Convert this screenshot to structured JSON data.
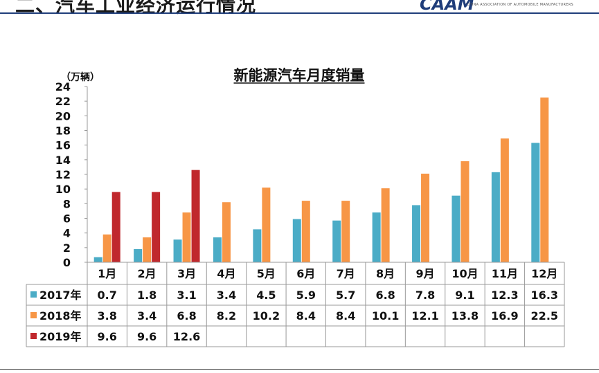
{
  "slide": {
    "heading": "二、汽车工业经济运行情况",
    "logo_mark": "CAAM",
    "logo_subtitle": "CHINA ASSOCIATION OF AUTOMOBILE MANUFACTURERS"
  },
  "chart_data": {
    "type": "bar",
    "title": "新能源汽车月度销量",
    "unit_label": "（万辆）",
    "ylim": [
      0,
      24
    ],
    "yticks": [
      0,
      2,
      4,
      6,
      8,
      10,
      12,
      14,
      16,
      18,
      20,
      22,
      24
    ],
    "grid": false,
    "legend": "table-left",
    "categories": [
      "1月",
      "2月",
      "3月",
      "4月",
      "5月",
      "6月",
      "7月",
      "8月",
      "9月",
      "10月",
      "11月",
      "12月"
    ],
    "series": [
      {
        "name": "2017年",
        "color": "#4bacc6",
        "values": [
          0.7,
          1.8,
          3.1,
          3.4,
          4.5,
          5.9,
          5.7,
          6.8,
          7.8,
          9.1,
          12.3,
          16.3
        ],
        "labels": [
          "0.7",
          "1.8",
          "3.1",
          "3.4",
          "4.5",
          "5.9",
          "5.7",
          "6.8",
          "7.8",
          "9.1",
          "12.3",
          "16.3"
        ]
      },
      {
        "name": "2018年",
        "color": "#f79646",
        "values": [
          3.8,
          3.4,
          6.8,
          8.2,
          10.2,
          8.4,
          8.4,
          10.1,
          12.1,
          13.8,
          16.9,
          22.5
        ],
        "labels": [
          "3.8",
          "3.4",
          "6.8",
          "8.2",
          "10.2",
          "8.4",
          "8.4",
          "10.1",
          "12.1",
          "13.8",
          "16.9",
          "22.5"
        ]
      },
      {
        "name": "2019年",
        "color": "#c0282d",
        "values": [
          9.6,
          9.6,
          12.6,
          null,
          null,
          null,
          null,
          null,
          null,
          null,
          null,
          null
        ],
        "labels": [
          "9.6",
          "9.6",
          "12.6",
          "",
          "",
          "",
          "",
          "",
          "",
          "",
          "",
          ""
        ]
      }
    ]
  }
}
